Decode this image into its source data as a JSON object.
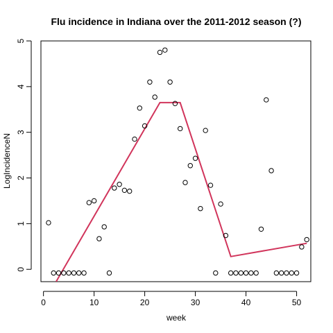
{
  "chart_data": {
    "type": "scatter",
    "title": "Flu incidence in Indiana over the 2011-2012 season (?)",
    "xlabel": "week",
    "ylabel": "LogIncidenceN",
    "xlim": [
      -0.5,
      52.8
    ],
    "ylim": [
      -0.27,
      5.0
    ],
    "x_ticks": [
      0,
      10,
      20,
      30,
      40,
      50
    ],
    "y_ticks": [
      0,
      1,
      2,
      3,
      4,
      5
    ],
    "grid": false,
    "legend": "none",
    "points": {
      "marker": "open-circle",
      "color": "#000000",
      "x": [
        1,
        2,
        3,
        4,
        5,
        6,
        7,
        8,
        9,
        10,
        11,
        12,
        13,
        14,
        15,
        16,
        17,
        18,
        19,
        20,
        21,
        22,
        23,
        24,
        25,
        26,
        27,
        28,
        29,
        30,
        31,
        32,
        33,
        34,
        35,
        36,
        37,
        38,
        39,
        40,
        41,
        42,
        43,
        44,
        45,
        46,
        47,
        48,
        49,
        50,
        51,
        52
      ],
      "y": [
        1.02,
        -0.08,
        -0.08,
        -0.08,
        -0.08,
        -0.08,
        -0.08,
        -0.08,
        1.46,
        1.5,
        0.67,
        0.93,
        -0.08,
        1.78,
        1.86,
        1.73,
        1.71,
        2.85,
        3.53,
        3.14,
        4.1,
        3.77,
        4.75,
        4.8,
        4.1,
        3.63,
        3.08,
        1.9,
        2.27,
        2.43,
        1.33,
        3.04,
        1.84,
        -0.08,
        1.43,
        0.74,
        -0.08,
        -0.08,
        -0.08,
        -0.08,
        -0.08,
        -0.08,
        0.88,
        3.71,
        2.16,
        -0.08,
        -0.08,
        -0.08,
        -0.08,
        -0.08,
        0.49,
        0.65
      ]
    },
    "fit_line": {
      "color": "#d1345b",
      "x": [
        2.5,
        23,
        27,
        37,
        52
      ],
      "y": [
        -0.27,
        3.65,
        3.65,
        0.28,
        0.57
      ]
    }
  }
}
